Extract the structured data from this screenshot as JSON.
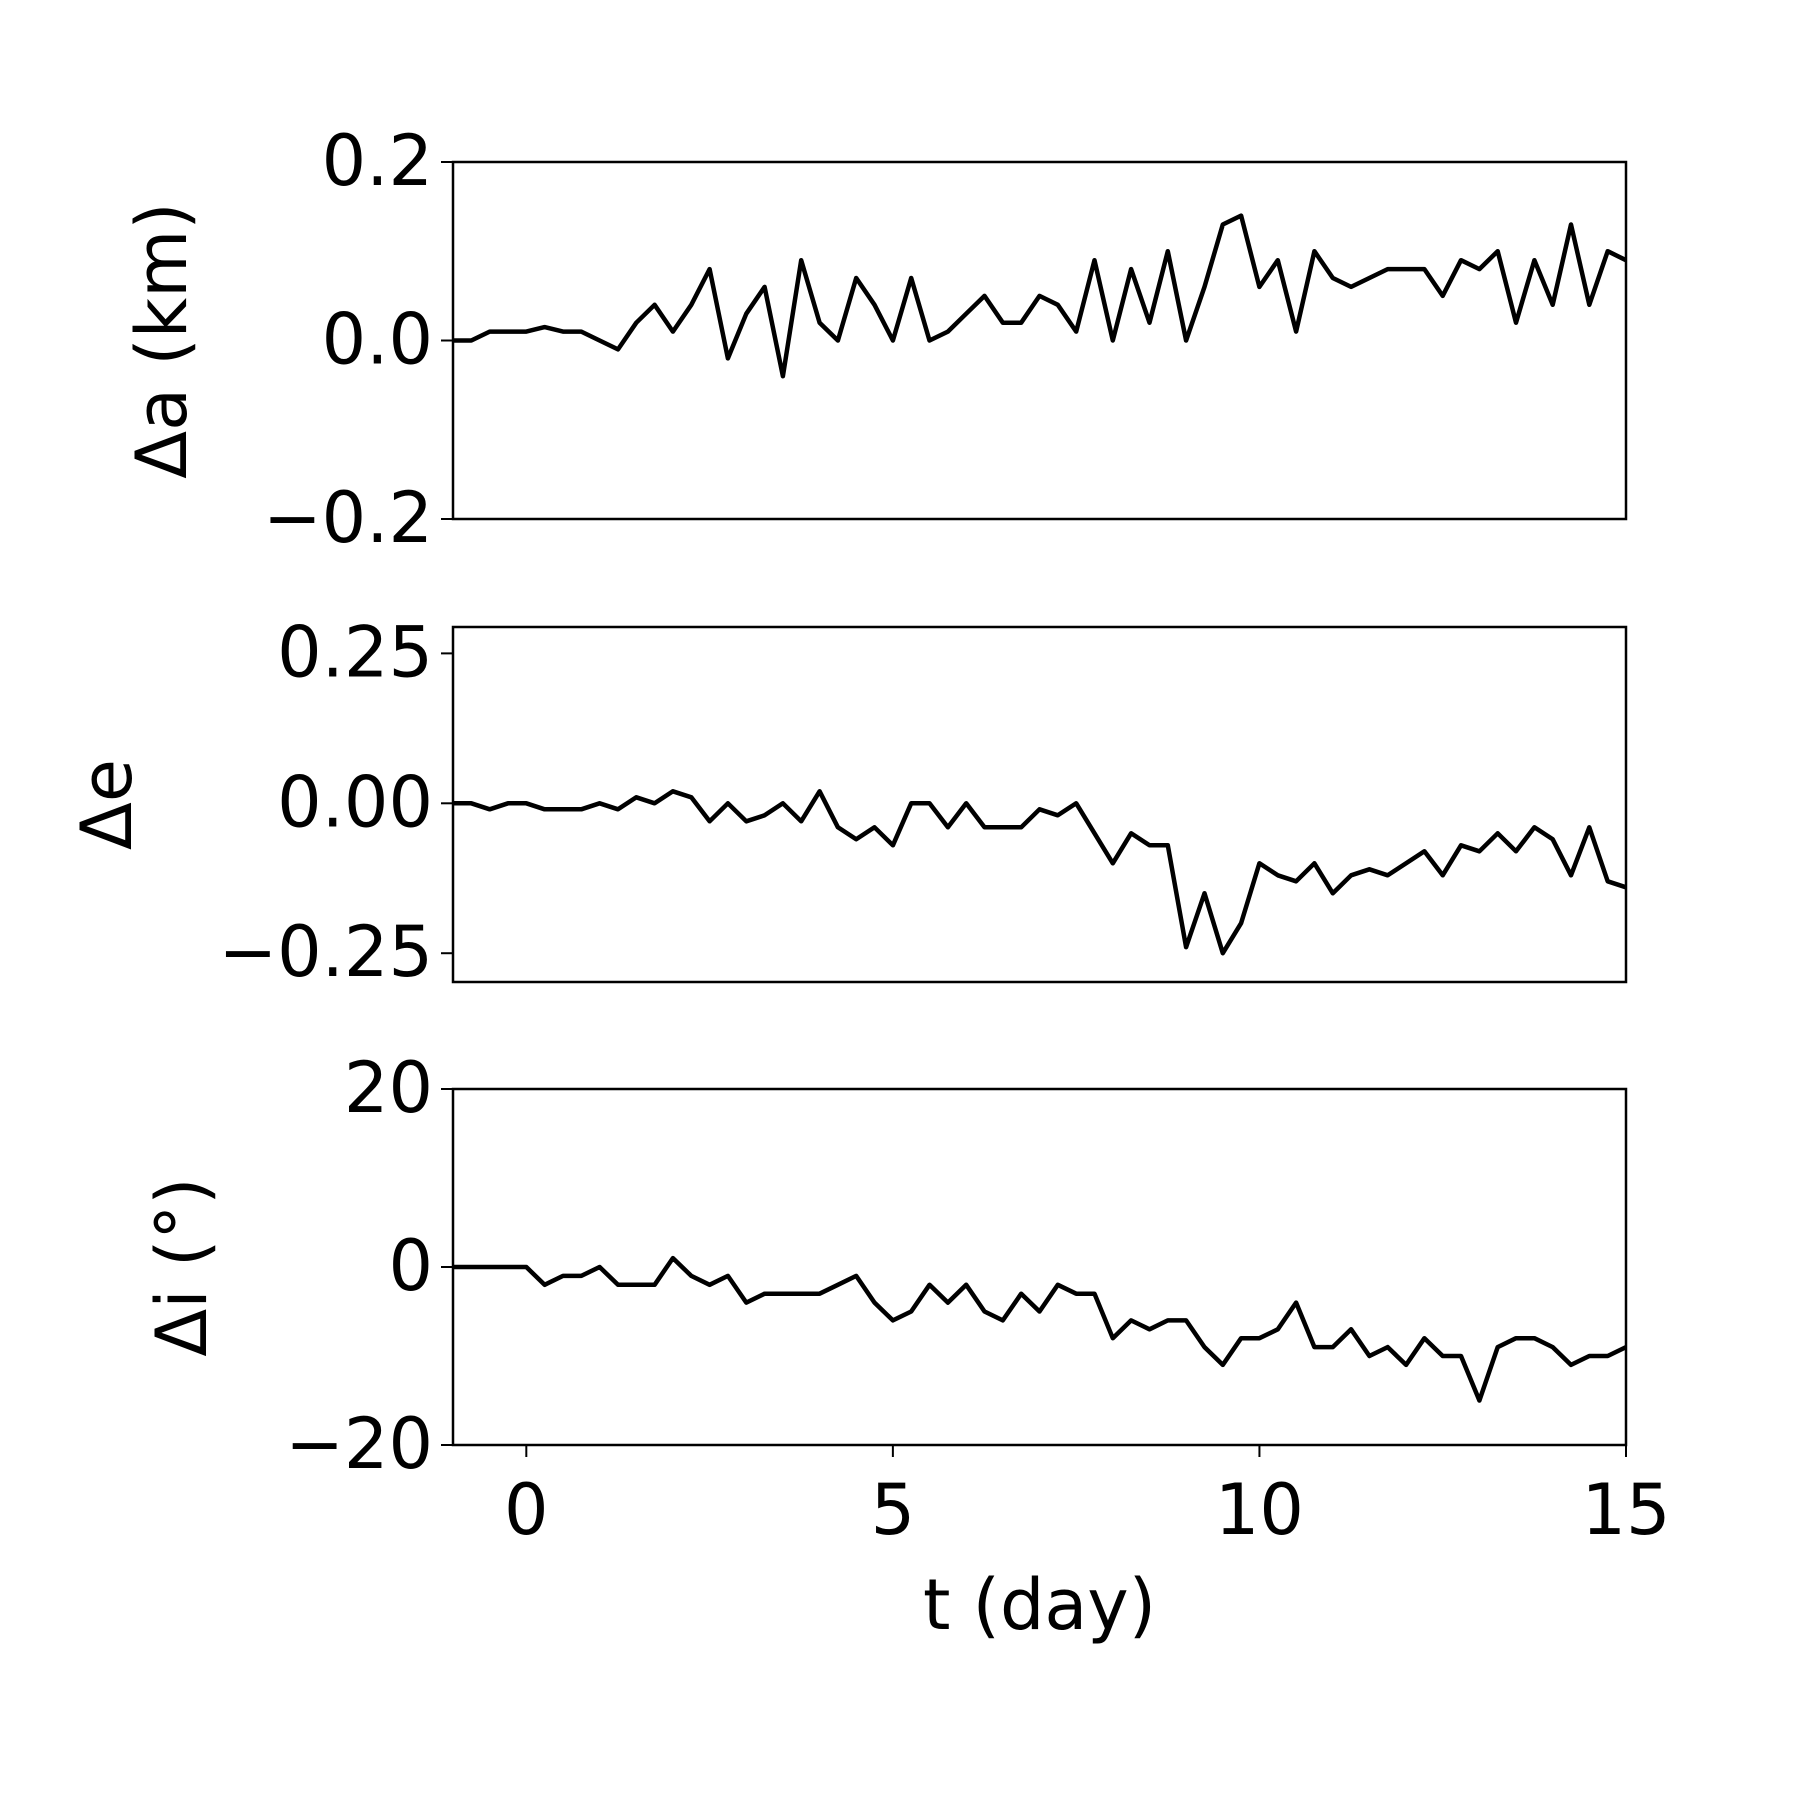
{
  "chart_data": [
    {
      "type": "line",
      "ylabel": "Δa (km)",
      "color": "#000000",
      "x": [
        -1,
        -0.75,
        -0.5,
        -0.25,
        0,
        0.25,
        0.5,
        0.75,
        1,
        1.25,
        1.5,
        1.75,
        2,
        2.25,
        2.5,
        2.75,
        3,
        3.25,
        3.5,
        3.75,
        4,
        4.25,
        4.5,
        4.75,
        5,
        5.25,
        5.5,
        5.75,
        6,
        6.25,
        6.5,
        6.75,
        7,
        7.25,
        7.5,
        7.75,
        8,
        8.25,
        8.5,
        8.75,
        9,
        9.25,
        9.5,
        9.75,
        10,
        10.25,
        10.5,
        10.75,
        11,
        11.25,
        11.5,
        11.75,
        12,
        12.25,
        12.5,
        12.75,
        13,
        13.25,
        13.5,
        13.75,
        14,
        14.25,
        14.5,
        14.75,
        15
      ],
      "values": [
        0,
        0,
        0.01,
        0.01,
        0.01,
        0.015,
        0.01,
        0.01,
        0,
        -0.01,
        0.02,
        0.04,
        0.01,
        0.04,
        0.08,
        -0.02,
        0.03,
        0.06,
        -0.04,
        0.09,
        0.02,
        0,
        0.07,
        0.04,
        0,
        0.07,
        0,
        0.01,
        0.03,
        0.05,
        0.02,
        0.02,
        0.05,
        0.04,
        0.01,
        0.09,
        0,
        0.08,
        0.02,
        0.1,
        0,
        0.06,
        0.13,
        0.14,
        0.06,
        0.09,
        0.01,
        0.1,
        0.07,
        0.06,
        0.07,
        0.08,
        0.08,
        0.08,
        0.05,
        0.09,
        0.08,
        0.1,
        0.02,
        0.09,
        0.04,
        0.13,
        0.04,
        0.1,
        0.09
      ],
      "xlim": [
        -1,
        15
      ],
      "ylim": [
        -0.2,
        0.2
      ],
      "yticks": [
        {
          "value": -0.2,
          "label": "−0.2"
        },
        {
          "value": 0,
          "label": "0.0"
        },
        0.2
      ]
    },
    {
      "type": "line",
      "ylabel": "Δe",
      "color": "#000000",
      "x": [
        -1,
        -0.75,
        -0.5,
        -0.25,
        0,
        0.25,
        0.5,
        0.75,
        1,
        1.25,
        1.5,
        1.75,
        2,
        2.25,
        2.5,
        2.75,
        3,
        3.25,
        3.5,
        3.75,
        4,
        4.25,
        4.5,
        4.75,
        5,
        5.25,
        5.5,
        5.75,
        6,
        6.25,
        6.5,
        6.75,
        7,
        7.25,
        7.5,
        7.75,
        8,
        8.25,
        8.5,
        8.75,
        9,
        9.25,
        9.5,
        9.75,
        10,
        10.25,
        10.5,
        10.75,
        11,
        11.25,
        11.5,
        11.75,
        12,
        12.25,
        12.5,
        12.75,
        13,
        13.25,
        13.5,
        13.75,
        14,
        14.25,
        14.5,
        14.75,
        15
      ],
      "values": [
        0,
        0,
        -0.01,
        0,
        0,
        -0.01,
        -0.01,
        -0.01,
        0,
        -0.01,
        0.01,
        0,
        0.02,
        0.01,
        -0.03,
        0,
        -0.03,
        -0.02,
        0,
        -0.03,
        0.02,
        -0.04,
        -0.06,
        -0.04,
        -0.07,
        0,
        0,
        -0.04,
        0,
        -0.04,
        -0.04,
        -0.04,
        -0.01,
        -0.02,
        0,
        -0.05,
        -0.1,
        -0.05,
        -0.07,
        -0.07,
        -0.24,
        -0.15,
        -0.25,
        -0.2,
        -0.1,
        -0.12,
        -0.13,
        -0.1,
        -0.15,
        -0.12,
        -0.11,
        -0.12,
        -0.1,
        -0.08,
        -0.12,
        -0.07,
        -0.08,
        -0.05,
        -0.08,
        -0.04,
        -0.06,
        -0.12,
        -0.04,
        -0.13,
        -0.14
      ],
      "xlim": [
        -1,
        15
      ],
      "ylim": [
        -0.298,
        0.294
      ],
      "yticks": [
        {
          "value": -0.25,
          "label": "−0.25"
        },
        {
          "value": 0,
          "label": "0.00"
        },
        0.25
      ]
    },
    {
      "type": "line",
      "ylabel": "Δi (°)",
      "xlabel": "t (day)",
      "color": "#000000",
      "x": [
        -1,
        -0.75,
        -0.5,
        -0.25,
        0,
        0.25,
        0.5,
        0.75,
        1,
        1.25,
        1.5,
        1.75,
        2,
        2.25,
        2.5,
        2.75,
        3,
        3.25,
        3.5,
        3.75,
        4,
        4.25,
        4.5,
        4.75,
        5,
        5.25,
        5.5,
        5.75,
        6,
        6.25,
        6.5,
        6.75,
        7,
        7.25,
        7.5,
        7.75,
        8,
        8.25,
        8.5,
        8.75,
        9,
        9.25,
        9.5,
        9.75,
        10,
        10.25,
        10.5,
        10.75,
        11,
        11.25,
        11.5,
        11.75,
        12,
        12.25,
        12.5,
        12.75,
        13,
        13.25,
        13.5,
        13.75,
        14,
        14.25,
        14.5,
        14.75,
        15
      ],
      "values": [
        0,
        0,
        0,
        0,
        0,
        -2,
        -1,
        -1,
        0,
        -2,
        -2,
        -2,
        1,
        -1,
        -2,
        -1,
        -4,
        -3,
        -3,
        -3,
        -3,
        -2,
        -1,
        -4,
        -6,
        -5,
        -2,
        -4,
        -2,
        -5,
        -6,
        -3,
        -5,
        -2,
        -3,
        -3,
        -8,
        -6,
        -7,
        -6,
        -6,
        -9,
        -11,
        -8,
        -8,
        -7,
        -4,
        -9,
        -9,
        -7,
        -10,
        -9,
        -11,
        -8,
        -10,
        -10,
        -15,
        -9,
        -8,
        -8,
        -9,
        -11,
        -10,
        -10,
        -9
      ],
      "xlim": [
        -1,
        15
      ],
      "ylim": [
        -20,
        20
      ],
      "yticks": [
        {
          "value": -20,
          "label": "−20"
        },
        0,
        20
      ],
      "xticks": [
        0,
        5,
        10,
        15
      ]
    }
  ]
}
